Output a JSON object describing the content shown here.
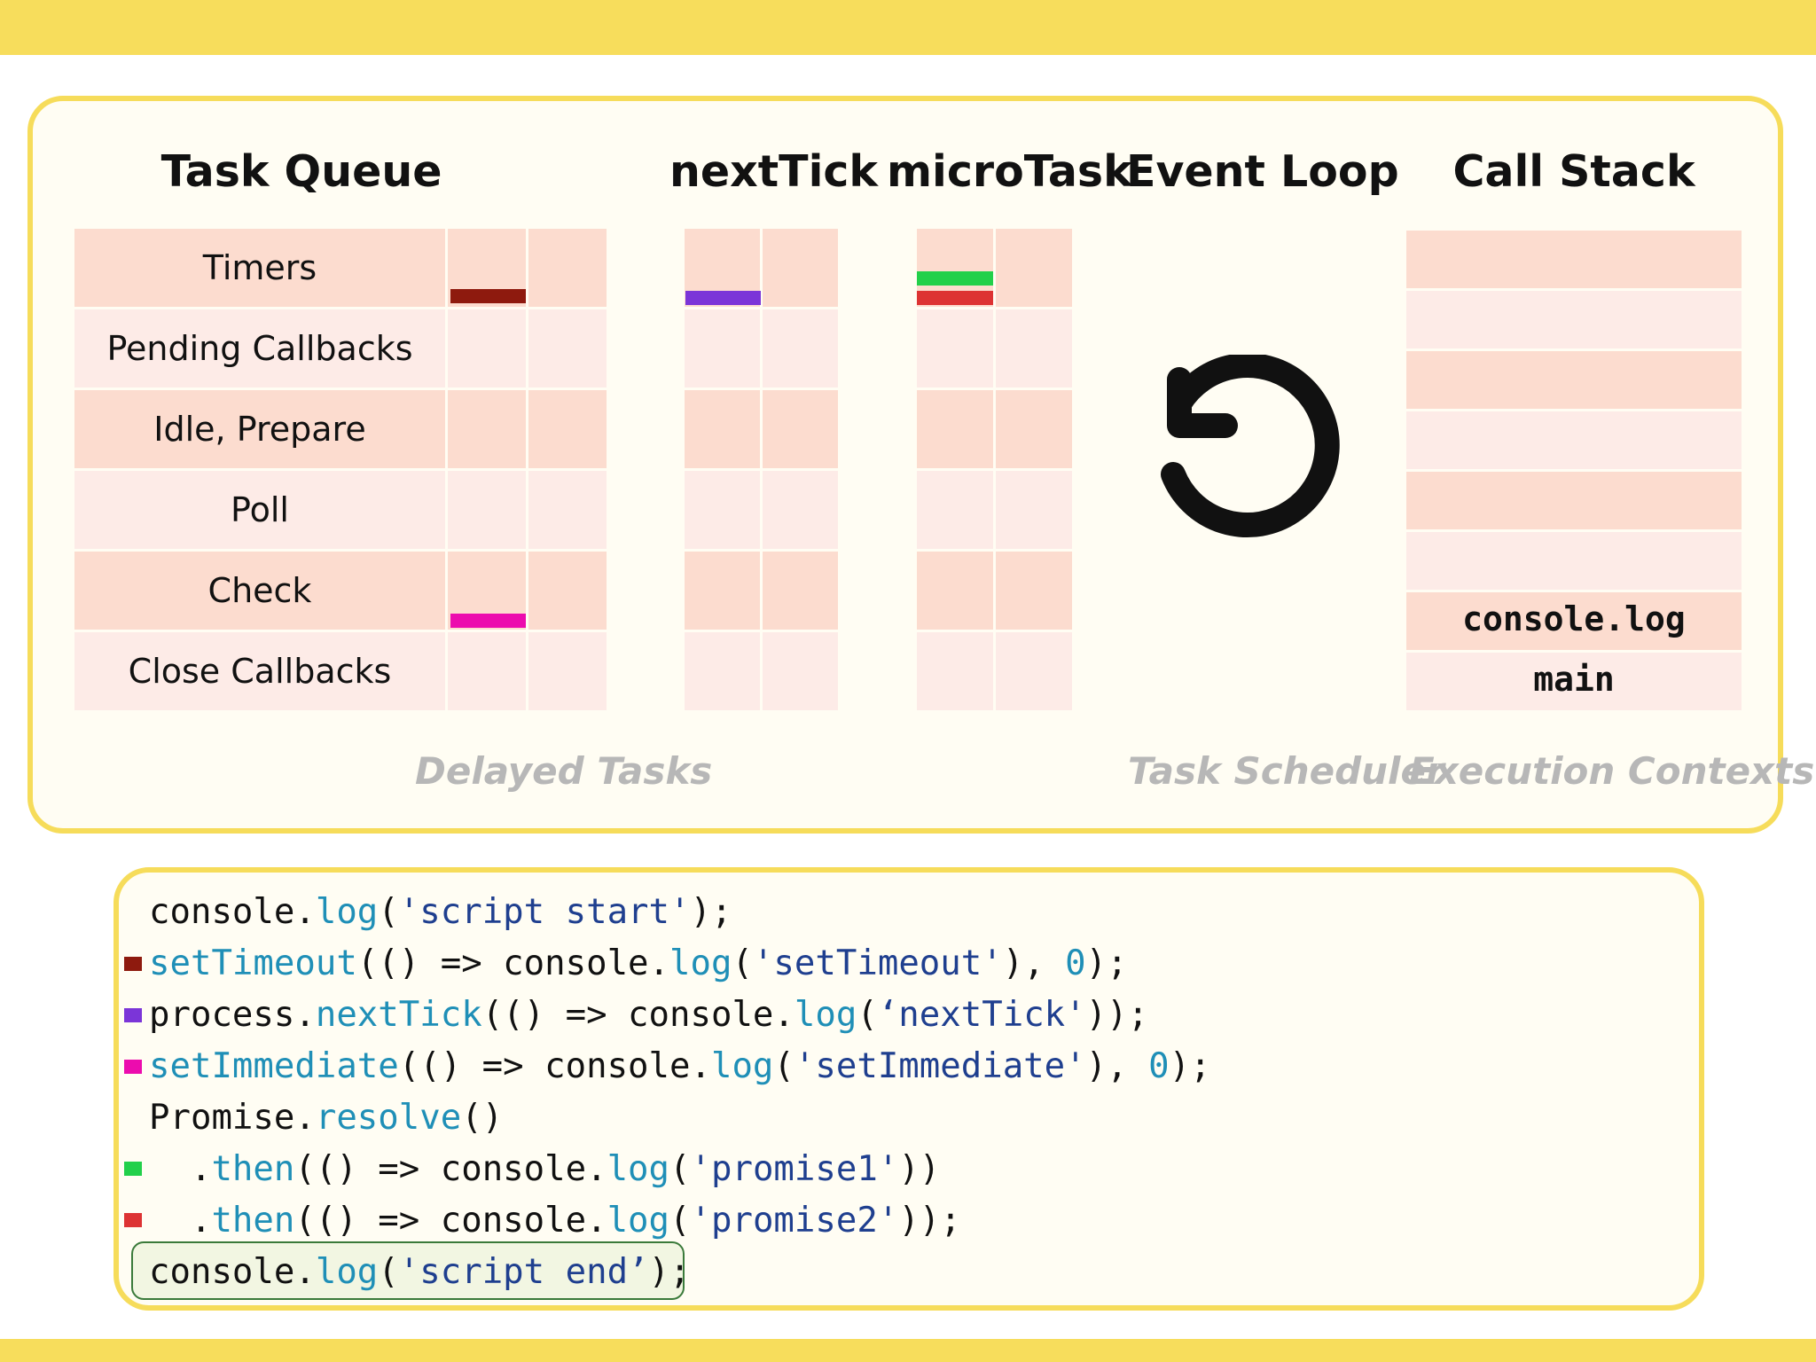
{
  "headers": {
    "task_queue": "Task Queue",
    "next_tick": "nextTick",
    "micro_task": "microTask",
    "event_loop": "Event Loop",
    "call_stack": "Call Stack"
  },
  "task_queue_rows": [
    "Timers",
    "Pending Callbacks",
    "Idle, Prepare",
    "Poll",
    "Check",
    "Close Callbacks"
  ],
  "call_stack_entries": [
    "console.log",
    "main"
  ],
  "captions": {
    "delayed_tasks": "Delayed Tasks",
    "task_scheduler": "Task Scheduler",
    "execution_contexts": "Execution Contexts"
  },
  "colors": {
    "timeout": "#8e1a0e",
    "next_tick": "#7b35d8",
    "immediate": "#ec0cae",
    "promise1": "#22d04a",
    "promise2": "#dd3333",
    "accent": "#f7dd5c"
  },
  "icons": {
    "event_loop": "rotate-counterclockwise-icon"
  },
  "code": {
    "l1": {
      "a": "console.",
      "b": "log",
      "c": "(",
      "d": "'script start'",
      "e": ");"
    },
    "l2": {
      "a": "setTimeout",
      "b": "(() => console.",
      "c": "log",
      "d": "(",
      "e": "'setTimeout'",
      "f": "), ",
      "g": "0",
      "h": ");"
    },
    "l3": {
      "a": "process.",
      "b": "nextTick",
      "c": "(() => console.",
      "d": "log",
      "e": "(",
      "f": "‘nextTick'",
      "g": "));"
    },
    "l4": {
      "a": "setImmediate",
      "b": "(() => console.",
      "c": "log",
      "d": "(",
      "e": "'setImmediate'",
      "f": "), ",
      "g": "0",
      "h": ");"
    },
    "l5": {
      "a": "Promise.",
      "b": "resolve",
      "c": "()"
    },
    "l6": {
      "a": "  .",
      "b": "then",
      "c": "(() => console.",
      "d": "log",
      "e": "(",
      "f": "'promise1'",
      "g": "))"
    },
    "l7": {
      "a": "  .",
      "b": "then",
      "c": "(() => console.",
      "d": "log",
      "e": "(",
      "f": "'promise2'",
      "g": "));"
    },
    "l8": {
      "a": "console.",
      "b": "log",
      "c": "(",
      "d": "'script end’",
      "e": ");"
    }
  }
}
